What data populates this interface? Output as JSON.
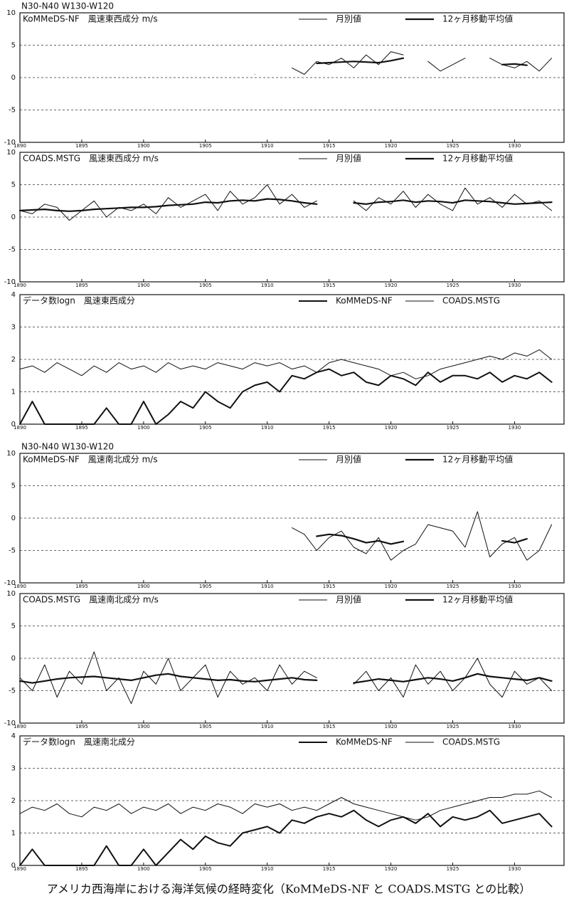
{
  "caption": "アメリカ西海岸における海洋気候の経時変化（KoMMeDS-NF と COADS.MSTG との比較）",
  "chart_data": [
    {
      "type": "line",
      "region": "N30-N40 W130-W120",
      "title": "KoMMeDS-NF　風速東西成分 m/s",
      "x": [
        1890,
        1891,
        1892,
        1893,
        1894,
        1895,
        1896,
        1897,
        1898,
        1899,
        1900,
        1901,
        1902,
        1903,
        1904,
        1905,
        1906,
        1907,
        1908,
        1909,
        1910,
        1911,
        1912,
        1913,
        1914,
        1915,
        1916,
        1917,
        1918,
        1919,
        1920,
        1921,
        1922,
        1923,
        1924,
        1925,
        1926,
        1927,
        1928,
        1929,
        1930,
        1931,
        1932,
        1933
      ],
      "xlim": [
        1890,
        1934
      ],
      "xticks": [
        1890,
        1895,
        1900,
        1905,
        1910,
        1915,
        1920,
        1925,
        1930
      ],
      "ylim": [
        -10,
        10
      ],
      "yticks": [
        -10,
        -5,
        0,
        5,
        10
      ],
      "grid": true,
      "series": [
        {
          "name": "月別値",
          "color": "#111111",
          "line_width": 1,
          "values": [
            null,
            null,
            null,
            null,
            null,
            null,
            null,
            null,
            null,
            null,
            null,
            null,
            null,
            null,
            null,
            null,
            null,
            null,
            null,
            0.5,
            null,
            null,
            1.5,
            0.5,
            2.5,
            2.0,
            3.0,
            1.5,
            3.5,
            2.0,
            4.0,
            3.5,
            null,
            2.5,
            1.0,
            2.0,
            3.0,
            null,
            3.0,
            2.0,
            1.5,
            2.5,
            1.0,
            3.0
          ]
        },
        {
          "name": "12ヶ月移動平均値",
          "color": "#111111",
          "line_width": 2.2,
          "values": [
            null,
            null,
            null,
            null,
            null,
            null,
            null,
            null,
            null,
            null,
            null,
            null,
            null,
            null,
            null,
            null,
            null,
            null,
            null,
            null,
            null,
            null,
            null,
            null,
            2.2,
            2.3,
            2.4,
            2.5,
            2.4,
            2.3,
            2.6,
            3.0,
            null,
            null,
            null,
            null,
            null,
            null,
            null,
            2.0,
            2.1,
            1.9,
            null,
            null
          ]
        }
      ]
    },
    {
      "type": "line",
      "title": "COADS.MSTG　風速東西成分 m/s",
      "x": [
        1890,
        1891,
        1892,
        1893,
        1894,
        1895,
        1896,
        1897,
        1898,
        1899,
        1900,
        1901,
        1902,
        1903,
        1904,
        1905,
        1906,
        1907,
        1908,
        1909,
        1910,
        1911,
        1912,
        1913,
        1914,
        1915,
        1916,
        1917,
        1918,
        1919,
        1920,
        1921,
        1922,
        1923,
        1924,
        1925,
        1926,
        1927,
        1928,
        1929,
        1930,
        1931,
        1932,
        1933
      ],
      "xlim": [
        1890,
        1934
      ],
      "xticks": [
        1890,
        1895,
        1900,
        1905,
        1910,
        1915,
        1920,
        1925,
        1930
      ],
      "ylim": [
        -10,
        10
      ],
      "yticks": [
        -10,
        -5,
        0,
        5,
        10
      ],
      "grid": true,
      "series": [
        {
          "name": "月別値",
          "color": "#111111",
          "line_width": 1,
          "values": [
            1.0,
            0.5,
            2.0,
            1.5,
            -0.5,
            1.0,
            2.5,
            0.0,
            1.5,
            1.0,
            2.0,
            0.5,
            3.0,
            1.5,
            2.5,
            3.5,
            1.0,
            4.0,
            2.0,
            3.0,
            5.0,
            2.0,
            3.5,
            1.5,
            2.5,
            null,
            null,
            2.5,
            1.0,
            3.0,
            2.0,
            4.0,
            1.5,
            3.5,
            2.0,
            1.0,
            4.5,
            2.0,
            3.0,
            1.5,
            3.5,
            2.0,
            2.5,
            1.0
          ]
        },
        {
          "name": "12ヶ月移動平均値",
          "color": "#111111",
          "line_width": 2.2,
          "values": [
            1.0,
            1.1,
            1.2,
            1.0,
            0.9,
            1.0,
            1.2,
            1.3,
            1.4,
            1.5,
            1.5,
            1.6,
            1.8,
            1.9,
            2.0,
            2.3,
            2.2,
            2.5,
            2.6,
            2.5,
            2.8,
            2.7,
            2.5,
            2.2,
            2.0,
            null,
            null,
            2.2,
            2.0,
            2.3,
            2.4,
            2.6,
            2.3,
            2.5,
            2.4,
            2.2,
            2.6,
            2.5,
            2.4,
            2.2,
            2.0,
            2.1,
            2.2,
            2.3
          ]
        }
      ]
    },
    {
      "type": "line",
      "title": "データ数logn　風速東西成分",
      "x": [
        1890,
        1891,
        1892,
        1893,
        1894,
        1895,
        1896,
        1897,
        1898,
        1899,
        1900,
        1901,
        1902,
        1903,
        1904,
        1905,
        1906,
        1907,
        1908,
        1909,
        1910,
        1911,
        1912,
        1913,
        1914,
        1915,
        1916,
        1917,
        1918,
        1919,
        1920,
        1921,
        1922,
        1923,
        1924,
        1925,
        1926,
        1927,
        1928,
        1929,
        1930,
        1931,
        1932,
        1933
      ],
      "xlim": [
        1890,
        1934
      ],
      "xticks": [
        1890,
        1895,
        1900,
        1905,
        1910,
        1915,
        1920,
        1925,
        1930
      ],
      "ylim": [
        0,
        4
      ],
      "yticks": [
        0,
        1,
        2,
        3,
        4
      ],
      "grid": true,
      "series": [
        {
          "name": "KoMMeDS-NF",
          "color": "#111111",
          "line_width": 2,
          "values": [
            0,
            0.7,
            0,
            0,
            0,
            0,
            0,
            0.5,
            0,
            0,
            0.7,
            0,
            0.3,
            0.7,
            0.5,
            1.0,
            0.7,
            0.5,
            1.0,
            1.2,
            1.3,
            1.0,
            1.5,
            1.4,
            1.6,
            1.7,
            1.5,
            1.6,
            1.3,
            1.2,
            1.5,
            1.4,
            1.2,
            1.6,
            1.3,
            1.5,
            1.5,
            1.4,
            1.6,
            1.3,
            1.5,
            1.4,
            1.6,
            1.3
          ]
        },
        {
          "name": "COADS.MSTG",
          "color": "#111111",
          "line_width": 1,
          "values": [
            1.7,
            1.8,
            1.6,
            1.9,
            1.7,
            1.5,
            1.8,
            1.6,
            1.9,
            1.7,
            1.8,
            1.6,
            1.9,
            1.7,
            1.8,
            1.7,
            1.9,
            1.8,
            1.7,
            1.9,
            1.8,
            1.9,
            1.7,
            1.8,
            1.6,
            1.9,
            2.0,
            1.9,
            1.8,
            1.7,
            1.5,
            1.6,
            1.4,
            1.5,
            1.7,
            1.8,
            1.9,
            2.0,
            2.1,
            2.0,
            2.2,
            2.1,
            2.3,
            2.0
          ]
        }
      ]
    },
    {
      "type": "line",
      "region": "N30-N40 W130-W120",
      "title": "KoMMeDS-NF　風速南北成分 m/s",
      "x": [
        1890,
        1891,
        1892,
        1893,
        1894,
        1895,
        1896,
        1897,
        1898,
        1899,
        1900,
        1901,
        1902,
        1903,
        1904,
        1905,
        1906,
        1907,
        1908,
        1909,
        1910,
        1911,
        1912,
        1913,
        1914,
        1915,
        1916,
        1917,
        1918,
        1919,
        1920,
        1921,
        1922,
        1923,
        1924,
        1925,
        1926,
        1927,
        1928,
        1929,
        1930,
        1931,
        1932,
        1933
      ],
      "xlim": [
        1890,
        1934
      ],
      "xticks": [
        1890,
        1895,
        1900,
        1905,
        1910,
        1915,
        1920,
        1925,
        1930
      ],
      "ylim": [
        -10,
        10
      ],
      "yticks": [
        -10,
        -5,
        0,
        5,
        10
      ],
      "grid": true,
      "series": [
        {
          "name": "月別値",
          "color": "#111111",
          "line_width": 1,
          "values": [
            null,
            null,
            null,
            null,
            null,
            null,
            null,
            null,
            null,
            null,
            null,
            null,
            null,
            null,
            null,
            null,
            null,
            null,
            null,
            -5.0,
            null,
            null,
            -1.5,
            -2.5,
            -5.0,
            -3.0,
            -2.0,
            -4.5,
            -5.5,
            -3.0,
            -6.5,
            -5.0,
            -4.0,
            -1.0,
            -1.5,
            -2.0,
            -4.5,
            1.0,
            -6.0,
            -4.0,
            -3.0,
            -6.5,
            -5.0,
            -1.0
          ]
        },
        {
          "name": "12ヶ月移動平均値",
          "color": "#111111",
          "line_width": 2.2,
          "values": [
            null,
            null,
            null,
            null,
            null,
            null,
            null,
            null,
            null,
            null,
            null,
            null,
            null,
            null,
            null,
            null,
            null,
            null,
            null,
            null,
            null,
            null,
            null,
            null,
            -2.8,
            -2.5,
            -2.7,
            -3.2,
            -3.8,
            -3.5,
            -4.0,
            -3.6,
            null,
            null,
            null,
            null,
            null,
            null,
            null,
            -3.5,
            -3.8,
            -3.2,
            null,
            null
          ]
        }
      ]
    },
    {
      "type": "line",
      "title": "COADS.MSTG　風速南北成分 m/s",
      "x": [
        1890,
        1891,
        1892,
        1893,
        1894,
        1895,
        1896,
        1897,
        1898,
        1899,
        1900,
        1901,
        1902,
        1903,
        1904,
        1905,
        1906,
        1907,
        1908,
        1909,
        1910,
        1911,
        1912,
        1913,
        1914,
        1915,
        1916,
        1917,
        1918,
        1919,
        1920,
        1921,
        1922,
        1923,
        1924,
        1925,
        1926,
        1927,
        1928,
        1929,
        1930,
        1931,
        1932,
        1933
      ],
      "xlim": [
        1890,
        1934
      ],
      "xticks": [
        1890,
        1895,
        1900,
        1905,
        1910,
        1915,
        1920,
        1925,
        1930
      ],
      "ylim": [
        -10,
        10
      ],
      "yticks": [
        -10,
        -5,
        0,
        5,
        10
      ],
      "grid": true,
      "series": [
        {
          "name": "月別値",
          "color": "#111111",
          "line_width": 1,
          "values": [
            -3,
            -5,
            -1,
            -6,
            -2,
            -4,
            1,
            -5,
            -3,
            -7,
            -2,
            -4,
            0,
            -5,
            -3,
            -1,
            -6,
            -2,
            -4,
            -3,
            -5,
            -1,
            -4,
            -2,
            -3,
            null,
            null,
            -4,
            -2,
            -5,
            -3,
            -6,
            -1,
            -4,
            -2,
            -5,
            -3,
            0,
            -4,
            -6,
            -2,
            -4,
            -3,
            -5
          ]
        },
        {
          "name": "12ヶ月移動平均値",
          "color": "#111111",
          "line_width": 2.2,
          "values": [
            -3.5,
            -3.8,
            -3.5,
            -3.2,
            -3.0,
            -2.9,
            -2.8,
            -3.0,
            -3.2,
            -3.4,
            -3.0,
            -2.6,
            -2.4,
            -2.8,
            -3.0,
            -3.2,
            -3.4,
            -3.3,
            -3.5,
            -3.6,
            -3.4,
            -3.2,
            -3.0,
            -3.3,
            -3.4,
            null,
            null,
            -3.8,
            -3.5,
            -3.2,
            -3.4,
            -3.6,
            -3.3,
            -3.0,
            -3.2,
            -3.5,
            -3.0,
            -2.4,
            -2.8,
            -3.0,
            -3.2,
            -3.4,
            -3.0,
            -3.5
          ]
        }
      ]
    },
    {
      "type": "line",
      "title": "データ数logn　風速南北成分",
      "x": [
        1890,
        1891,
        1892,
        1893,
        1894,
        1895,
        1896,
        1897,
        1898,
        1899,
        1900,
        1901,
        1902,
        1903,
        1904,
        1905,
        1906,
        1907,
        1908,
        1909,
        1910,
        1911,
        1912,
        1913,
        1914,
        1915,
        1916,
        1917,
        1918,
        1919,
        1920,
        1921,
        1922,
        1923,
        1924,
        1925,
        1926,
        1927,
        1928,
        1929,
        1930,
        1931,
        1932,
        1933
      ],
      "xlim": [
        1890,
        1934
      ],
      "xticks": [
        1890,
        1895,
        1900,
        1905,
        1910,
        1915,
        1920,
        1925,
        1930
      ],
      "ylim": [
        0,
        4
      ],
      "yticks": [
        0,
        1,
        2,
        3,
        4
      ],
      "grid": true,
      "series": [
        {
          "name": "KoMMeDS-NF",
          "color": "#111111",
          "line_width": 2,
          "values": [
            0,
            0.5,
            0,
            0,
            0,
            0,
            0,
            0.6,
            0,
            0,
            0.5,
            0,
            0.4,
            0.8,
            0.5,
            0.9,
            0.7,
            0.6,
            1.0,
            1.1,
            1.2,
            1.0,
            1.4,
            1.3,
            1.5,
            1.6,
            1.5,
            1.7,
            1.4,
            1.2,
            1.4,
            1.5,
            1.3,
            1.6,
            1.2,
            1.5,
            1.4,
            1.5,
            1.7,
            1.3,
            1.4,
            1.5,
            1.6,
            1.2
          ]
        },
        {
          "name": "COADS.MSTG",
          "color": "#111111",
          "line_width": 1,
          "values": [
            1.6,
            1.8,
            1.7,
            1.9,
            1.6,
            1.5,
            1.8,
            1.7,
            1.9,
            1.6,
            1.8,
            1.7,
            1.9,
            1.6,
            1.8,
            1.7,
            1.9,
            1.8,
            1.6,
            1.9,
            1.8,
            1.9,
            1.7,
            1.8,
            1.7,
            1.9,
            2.1,
            1.9,
            1.8,
            1.7,
            1.6,
            1.5,
            1.4,
            1.5,
            1.7,
            1.8,
            1.9,
            2.0,
            2.1,
            2.1,
            2.2,
            2.2,
            2.3,
            2.1
          ]
        }
      ]
    }
  ]
}
